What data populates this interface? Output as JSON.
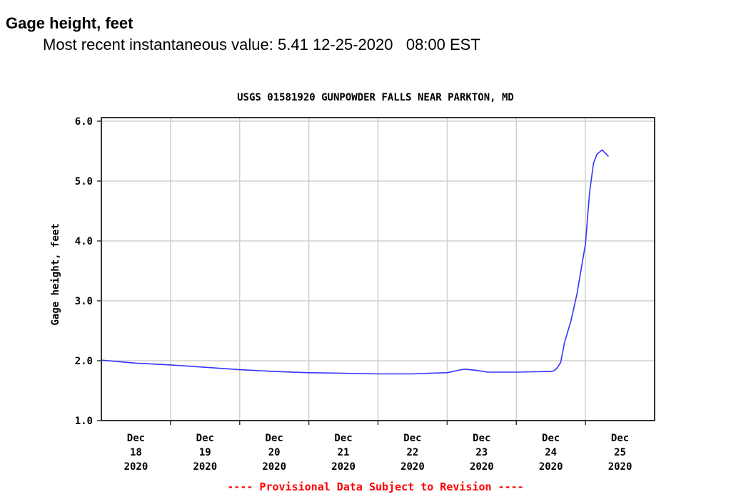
{
  "header": {
    "title": "Gage height, feet",
    "recent_label": "Most recent instantaneous value:",
    "recent_value": "5.41",
    "recent_date": "12-25-2020",
    "recent_time": "08:00 EST"
  },
  "chart_data": {
    "type": "line",
    "title": "USGS 01581920 GUNPOWDER FALLS NEAR PARKTON, MD",
    "ylabel": "Gage height, feet",
    "xlabel": "",
    "ylim": [
      1.0,
      6.0
    ],
    "yticks": [
      "1.0",
      "2.0",
      "3.0",
      "4.0",
      "5.0",
      "6.0"
    ],
    "xlim_hours_from_dec18": [
      0,
      192
    ],
    "xticks": [
      [
        "Dec",
        "18",
        "2020"
      ],
      [
        "Dec",
        "19",
        "2020"
      ],
      [
        "Dec",
        "20",
        "2020"
      ],
      [
        "Dec",
        "21",
        "2020"
      ],
      [
        "Dec",
        "22",
        "2020"
      ],
      [
        "Dec",
        "23",
        "2020"
      ],
      [
        "Dec",
        "24",
        "2020"
      ],
      [
        "Dec",
        "25",
        "2020"
      ]
    ],
    "grid": true,
    "line_color": "#3333ff",
    "footnote": "---- Provisional Data Subject to Revision ----",
    "footnote_color": "#ff0000",
    "series": [
      {
        "name": "Gage height",
        "x_hours": [
          0,
          12,
          24,
          36,
          48,
          60,
          72,
          84,
          96,
          108,
          114,
          120,
          124,
          126,
          130,
          134,
          144,
          156,
          157,
          158,
          159.4,
          160.7,
          163,
          165,
          168,
          169.4,
          170.8,
          172,
          173.8,
          176
        ],
        "values": [
          2.01,
          1.96,
          1.93,
          1.89,
          1.85,
          1.82,
          1.8,
          1.79,
          1.78,
          1.78,
          1.79,
          1.8,
          1.84,
          1.86,
          1.84,
          1.81,
          1.81,
          1.82,
          1.83,
          1.87,
          1.97,
          2.3,
          2.67,
          3.1,
          3.95,
          4.8,
          5.3,
          5.45,
          5.52,
          5.41
        ]
      }
    ]
  }
}
